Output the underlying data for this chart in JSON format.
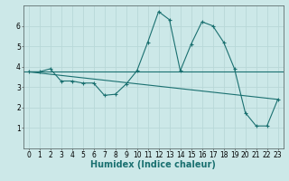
{
  "xlabel": "Humidex (Indice chaleur)",
  "background_color": "#cce8e8",
  "line_color": "#1a7070",
  "xlim": [
    -0.5,
    23.5
  ],
  "ylim": [
    0,
    7
  ],
  "x_ticks": [
    0,
    1,
    2,
    3,
    4,
    5,
    6,
    7,
    8,
    9,
    10,
    11,
    12,
    13,
    14,
    15,
    16,
    17,
    18,
    19,
    20,
    21,
    22,
    23
  ],
  "y_ticks": [
    1,
    2,
    3,
    4,
    5,
    6
  ],
  "series1_x": [
    0,
    1,
    2,
    3,
    4,
    5,
    6,
    7,
    8,
    9,
    10,
    11,
    12,
    13,
    14,
    15,
    16,
    17,
    18,
    19,
    20,
    21,
    22,
    23
  ],
  "series1_y": [
    3.75,
    3.75,
    3.9,
    3.3,
    3.3,
    3.2,
    3.2,
    2.6,
    2.65,
    3.15,
    3.8,
    5.2,
    6.7,
    6.3,
    3.8,
    5.1,
    6.2,
    6.0,
    5.2,
    3.9,
    1.75,
    1.1,
    1.1,
    2.4
  ],
  "series2_x": [
    0,
    23
  ],
  "series2_y": [
    3.75,
    2.4
  ],
  "horizontal_line_y": 3.75,
  "grid_color": "#b8d8d8",
  "tick_fontsize": 5.5,
  "xlabel_fontsize": 7
}
